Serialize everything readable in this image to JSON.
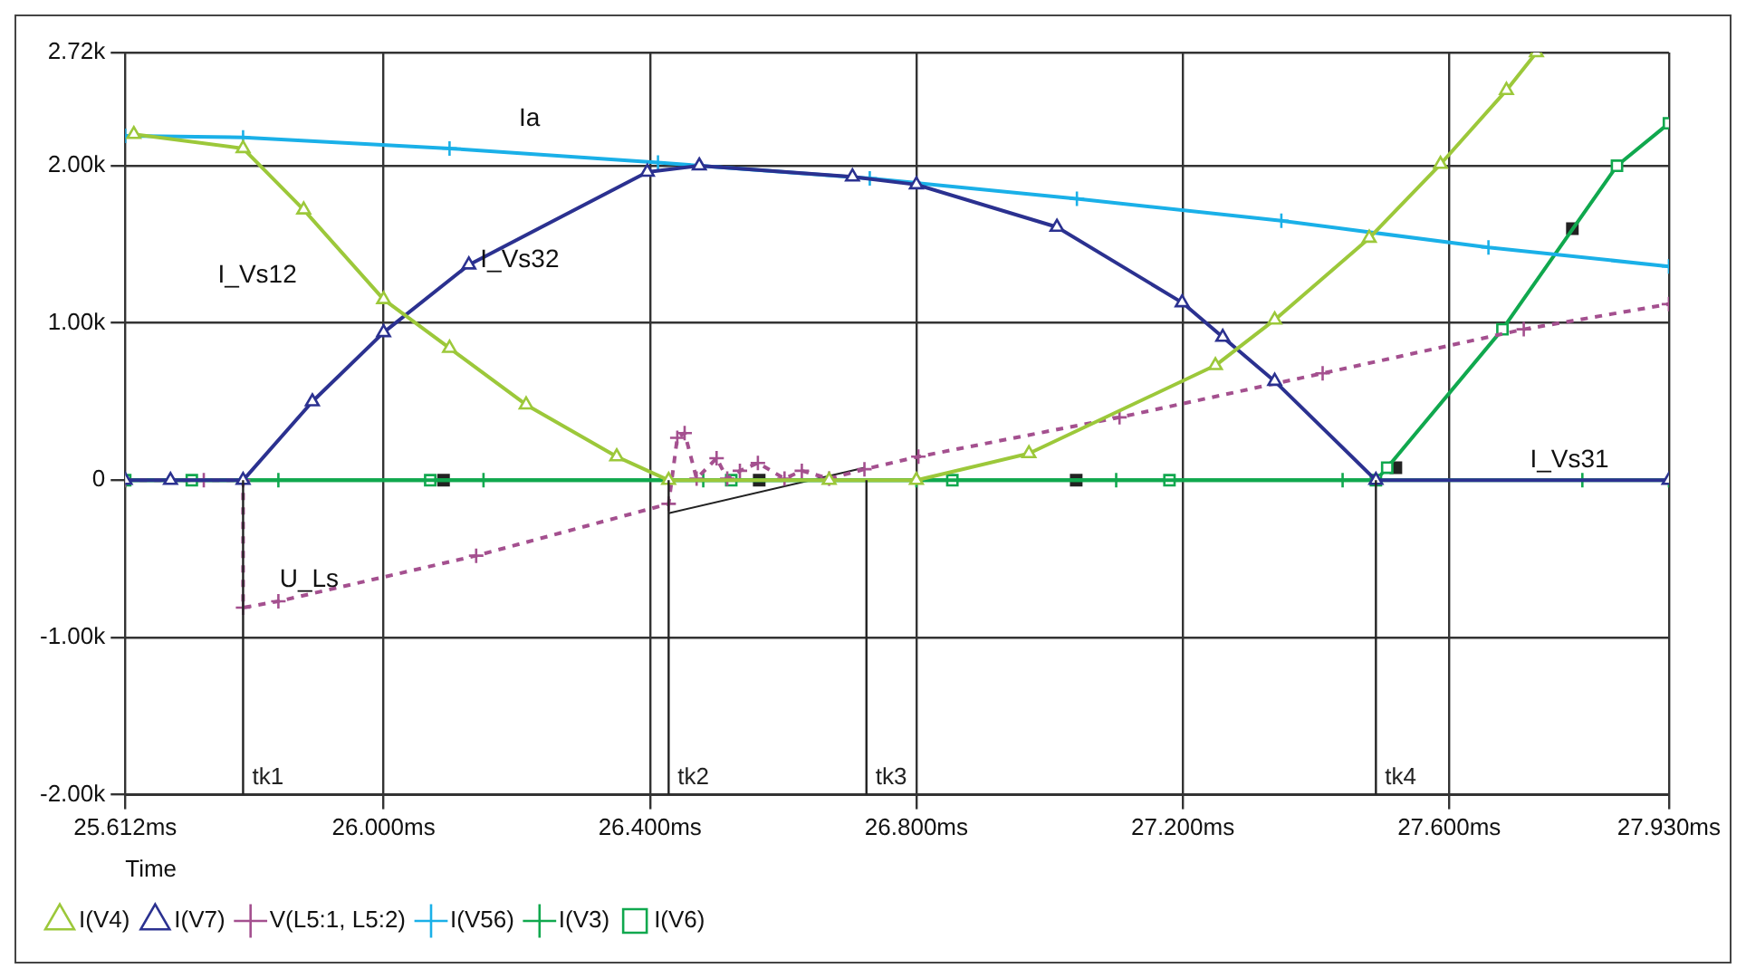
{
  "chart_data": {
    "type": "line",
    "xlabel": "Time",
    "xlim": [
      25.612,
      27.93
    ],
    "xticks": [
      {
        "value": 25.612,
        "label": "25.612ms"
      },
      {
        "value": 26.0,
        "label": "26.000ms"
      },
      {
        "value": 26.4,
        "label": "26.400ms"
      },
      {
        "value": 26.8,
        "label": "26.800ms"
      },
      {
        "value": 27.2,
        "label": "27.200ms"
      },
      {
        "value": 27.6,
        "label": "27.600ms"
      },
      {
        "value": 27.93,
        "label": "27.930ms"
      }
    ],
    "ylim": [
      -2000,
      2720
    ],
    "yticks": [
      {
        "value": -2000,
        "label": "-2.00k"
      },
      {
        "value": -1000,
        "label": "-1.00k"
      },
      0,
      {
        "value": 1000,
        "label": "1.00k"
      },
      {
        "value": 2000,
        "label": "2.00k"
      },
      {
        "value": 2720,
        "label": "2.72k"
      }
    ],
    "grid": true,
    "legend": "bottom left",
    "series": [
      {
        "name": "I(V4)",
        "color": "#9cc83a",
        "marker": "triangle",
        "x": [
          25.625,
          25.789,
          25.88,
          26.0,
          26.099,
          26.214,
          26.35,
          26.428,
          26.669,
          26.8,
          26.969,
          27.249,
          27.338,
          27.48,
          27.587,
          27.686,
          27.731
        ],
        "values": [
          2200,
          2110,
          1720,
          1150,
          840,
          480,
          150,
          0,
          0,
          0,
          170,
          730,
          1020,
          1540,
          2010,
          2480,
          2720
        ]
      },
      {
        "name": "I(V7)",
        "color": "#2b3190",
        "marker": "triangle",
        "x": [
          25.612,
          25.68,
          25.789,
          25.893,
          26.0,
          26.128,
          26.396,
          26.474,
          26.704,
          26.8,
          27.011,
          27.199,
          27.26,
          27.338,
          27.49,
          27.93
        ],
        "values": [
          0,
          0,
          0,
          500,
          940,
          1370,
          1960,
          2000,
          1930,
          1880,
          1610,
          1130,
          910,
          630,
          0,
          0
        ]
      },
      {
        "name": "V(L5:1, L5:2)",
        "color": "#a4508f",
        "marker": "cross",
        "line_style": "dashed",
        "x": [
          25.612,
          25.73,
          25.789,
          25.789,
          25.842,
          26.139,
          26.428,
          26.441,
          26.452,
          26.47,
          26.5,
          26.516,
          26.535,
          26.562,
          26.602,
          26.628,
          26.669,
          26.722,
          26.803,
          27.105,
          27.41,
          27.712,
          27.93
        ],
        "values": [
          0,
          0,
          0,
          -810,
          -770,
          -480,
          -150,
          270,
          300,
          10,
          140,
          10,
          60,
          110,
          10,
          60,
          10,
          70,
          150,
          400,
          680,
          960,
          1120
        ]
      },
      {
        "name": "I(V56)",
        "color": "#1ab0e8",
        "marker": "cross",
        "x": [
          25.612,
          25.789,
          26.099,
          26.412,
          26.73,
          27.041,
          27.348,
          27.659,
          27.93
        ],
        "values": [
          2190,
          2180,
          2110,
          2020,
          1920,
          1790,
          1650,
          1480,
          1360
        ]
      },
      {
        "name": "I(V3)",
        "color": "#10a84e",
        "marker": "cross",
        "x": [
          25.612,
          25.842,
          26.15,
          26.48,
          26.8,
          27.1,
          27.44,
          27.8,
          27.93
        ],
        "values": [
          0,
          0,
          0,
          0,
          0,
          0,
          0,
          0,
          0
        ]
      },
      {
        "name": "I(V6)",
        "color": "#10a84e",
        "marker": "square",
        "x": [
          25.612,
          25.712,
          26.07,
          26.522,
          26.854,
          27.18,
          27.49,
          27.507,
          27.68,
          27.852,
          27.93
        ],
        "values": [
          0,
          0,
          0,
          0,
          0,
          0,
          0,
          80,
          960,
          2000,
          2270
        ]
      },
      {
        "type": "scatter",
        "color": "#222222",
        "marker": "square",
        "x": [
          26.09,
          26.564,
          27.04,
          27.52,
          27.785
        ],
        "values": [
          0,
          0,
          0,
          80,
          1600
        ]
      },
      {
        "color": "#222222",
        "marker": "none",
        "x": [
          26.428,
          26.722
        ],
        "values": [
          -210,
          80
        ]
      }
    ],
    "ref_lines": [
      {
        "axis": "x",
        "value": 25.789,
        "label": "tk1",
        "color": "#222222"
      },
      {
        "axis": "x",
        "value": 26.428,
        "label": "tk2",
        "color": "#222222"
      },
      {
        "axis": "x",
        "value": 26.725,
        "label": "tk3",
        "color": "#222222"
      },
      {
        "axis": "x",
        "value": 27.49,
        "label": "tk4",
        "color": "#222222"
      }
    ],
    "annotations": [
      "Ia",
      "I_Vs12",
      "I_Vs32",
      "I_Vs31",
      "U_Ls"
    ]
  }
}
